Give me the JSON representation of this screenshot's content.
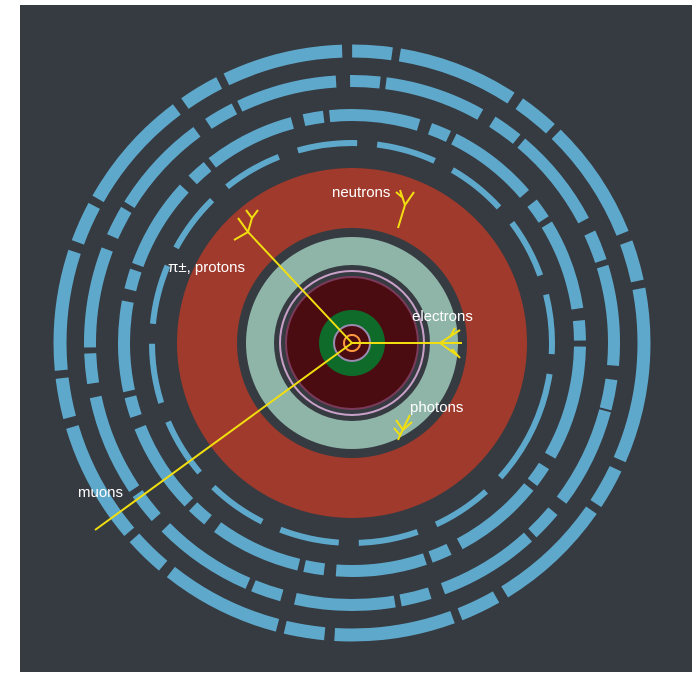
{
  "labels": {
    "neutrons": "neutrons",
    "pions_protons": "π±, protons",
    "electrons": "electrons",
    "photons": "photons",
    "muons": "muons"
  }
}
